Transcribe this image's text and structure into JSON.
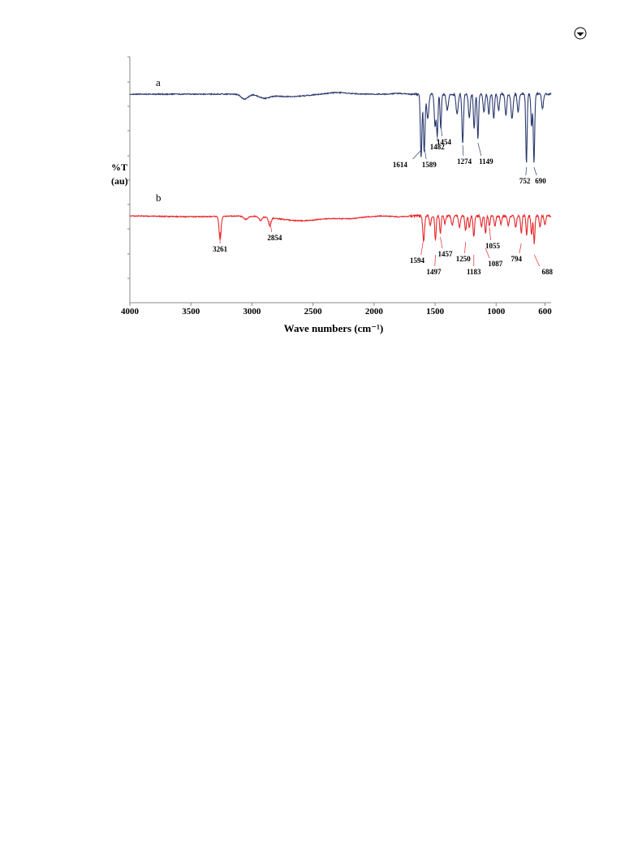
{
  "page": {
    "corner_icon": "circled-arrow-icon"
  },
  "chart_data": {
    "type": "line",
    "title": "",
    "xlabel": "Wave numbers (cm⁻¹)",
    "ylabel_line1": "%T",
    "ylabel_line2": "(au)",
    "xlim": [
      4000,
      550
    ],
    "x_reversed": true,
    "x_ticks": [
      4000,
      3500,
      3000,
      2500,
      2000,
      1500,
      1000,
      600
    ],
    "x_tick_labels": [
      "4000",
      "3500",
      "3000",
      "2500",
      "2000",
      "1500",
      "1000",
      "600"
    ],
    "grid": false,
    "legend": "none",
    "series": [
      {
        "name": "a",
        "color": "#2b3a6e",
        "peaks": [
          {
            "x": 1614,
            "label": "1614"
          },
          {
            "x": 1589,
            "label": "1589"
          },
          {
            "x": 1482,
            "label": "1482"
          },
          {
            "x": 1454,
            "label": "1454"
          },
          {
            "x": 1274,
            "label": "1274"
          },
          {
            "x": 1149,
            "label": "1149"
          },
          {
            "x": 752,
            "label": "752"
          },
          {
            "x": 690,
            "label": "690"
          }
        ]
      },
      {
        "name": "b",
        "color": "#e8262a",
        "peaks": [
          {
            "x": 3261,
            "label": "3261"
          },
          {
            "x": 2854,
            "label": "2854"
          },
          {
            "x": 1594,
            "label": "1594"
          },
          {
            "x": 1497,
            "label": "1497"
          },
          {
            "x": 1457,
            "label": "1457"
          },
          {
            "x": 1250,
            "label": "1250"
          },
          {
            "x": 1183,
            "label": "1183"
          },
          {
            "x": 1087,
            "label": "1087"
          },
          {
            "x": 1055,
            "label": "1055"
          },
          {
            "x": 794,
            "label": "794"
          },
          {
            "x": 688,
            "label": "688"
          }
        ]
      }
    ]
  }
}
